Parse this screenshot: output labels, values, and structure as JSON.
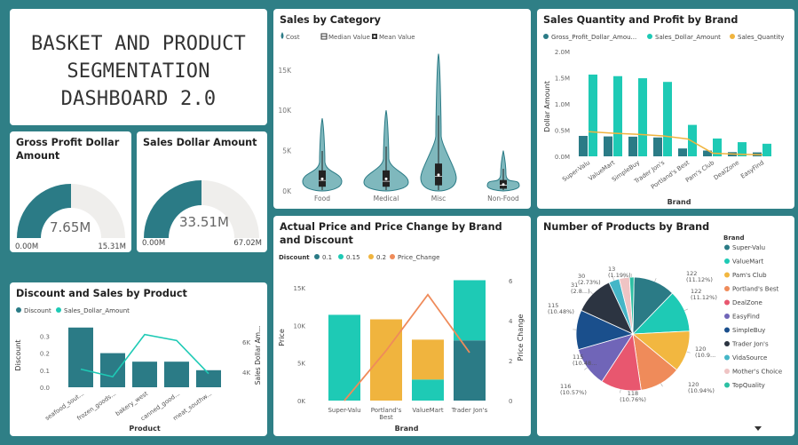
{
  "dashboard": {
    "title_lines": [
      "BASKET AND PRODUCT",
      "SEGMENTATION",
      "DASHBOARD 2.0"
    ]
  },
  "colors": {
    "teal_dark": "#2b7b86",
    "teal_light": "#1ecab5",
    "orange": "#f0b43e",
    "salmon": "#ef8b5a",
    "gray_track": "#efeeec",
    "background": "#2f7f86"
  },
  "kpis": [
    {
      "title": "Gross Profit Dollar Amount",
      "value": "7.65M",
      "min": "0.00M",
      "max": "15.31M",
      "fraction": 0.5
    },
    {
      "title": "Sales Dollar Amount",
      "value": "33.51M",
      "min": "0.00M",
      "max": "67.02M",
      "fraction": 0.5
    }
  ],
  "charts": {
    "violin": {
      "title": "Sales by Category",
      "legend": [
        "Cost",
        "Median Value",
        "Mean Value"
      ],
      "legend_icons": [
        "drop-icon",
        "median-box-icon",
        "mean-box-icon"
      ],
      "yticks": [
        "0K",
        "5K",
        "10K",
        "15K"
      ]
    },
    "quantity": {
      "title": "Sales Quantity and Profit by Brand",
      "legend": [
        "Gross_Profit_Dollar_Amou...",
        "Sales_Dollar_Amount",
        "Sales_Quantity"
      ],
      "yticks": [
        "0.0M",
        "0.5M",
        "1.0M",
        "1.5M",
        "2.0M"
      ],
      "ylabel": "Dollar Amount",
      "xlabel": "Brand"
    },
    "discount": {
      "title": "Discount and Sales by Product",
      "legend": [
        "Discount",
        "Sales_Dollar_Amount"
      ],
      "yticks": [
        "0.0",
        "0.1",
        "0.2",
        "0.3"
      ],
      "y2ticks": [
        "4K",
        "6K"
      ],
      "ylabel": "Discount",
      "y2label": "Sales Dollar Am...",
      "xlabel": "Product"
    },
    "price": {
      "title": "Actual Price and Price Change by Brand and Discount",
      "legend_title": "Discount",
      "legend": [
        "0.1",
        "0.15",
        "0.2",
        "Price_Change"
      ],
      "yticks": [
        "0K",
        "5K",
        "10K",
        "15K"
      ],
      "y2ticks": [
        "0",
        "2",
        "4",
        "6"
      ],
      "ylabel": "Price",
      "y2label": "Price Change",
      "xlabel": "Brand"
    },
    "pie": {
      "title": "Number of Products by Brand",
      "legend_title": "Brand"
    }
  },
  "chart_data": [
    {
      "type": "violin",
      "title": "Sales by Category",
      "categories": [
        "Food",
        "Medical",
        "Misc",
        "Non-Food"
      ],
      "ylim": [
        0,
        18000
      ],
      "max": [
        9000,
        10000,
        17000,
        5000
      ],
      "median": [
        1300,
        1200,
        1800,
        700
      ],
      "mean": [
        1500,
        1500,
        2000,
        800
      ]
    },
    {
      "type": "bar",
      "title": "Sales Quantity and Profit by Brand",
      "categories": [
        "Super-Valu",
        "ValueMart",
        "SimpleBuy",
        "Trader Jon's",
        "Portland's Best",
        "Pam's Club",
        "DealZone",
        "EasyFind"
      ],
      "ylim": [
        0,
        2000000
      ],
      "series": [
        {
          "name": "Gross_Profit_Dollar_Amou...",
          "values": [
            390000,
            380000,
            375000,
            360000,
            150000,
            110000,
            80000,
            75000
          ]
        },
        {
          "name": "Sales_Dollar_Amount",
          "values": [
            1560000,
            1530000,
            1490000,
            1420000,
            600000,
            340000,
            270000,
            240000
          ]
        },
        {
          "name": "Sales_Quantity",
          "values": [
            470000,
            440000,
            420000,
            390000,
            330000,
            60000,
            40000,
            30000
          ]
        }
      ],
      "xlabel": "Brand",
      "ylabel": "Dollar Amount"
    },
    {
      "type": "bar",
      "title": "Discount and Sales by Product",
      "categories": [
        "seafood_sout...",
        "frozen_goods...",
        "bakery_west",
        "canned_good...",
        "meat_southw..."
      ],
      "ylim": [
        0,
        0.38
      ],
      "series": [
        {
          "name": "Discount",
          "values": [
            0.35,
            0.2,
            0.15,
            0.15,
            0.1
          ]
        },
        {
          "name": "Sales_Dollar_Amount",
          "values": [
            4200,
            3700,
            6500,
            6100,
            3900
          ]
        }
      ],
      "y2lim": [
        3000,
        7300
      ],
      "xlabel": "Product",
      "ylabel": "Discount"
    },
    {
      "type": "bar",
      "title": "Actual Price and Price Change by Brand and Discount",
      "categories": [
        "Super-Valu",
        "Portland's Best",
        "ValueMart",
        "Trader Jon's"
      ],
      "ylim": [
        0,
        17000
      ],
      "stacks": [
        [
          {
            "discount": "0.15",
            "value": 11400
          }
        ],
        [
          {
            "discount": "0.2",
            "value": 10800
          }
        ],
        [
          {
            "discount": "0.15",
            "value": 2800
          },
          {
            "discount": "0.2",
            "value": 5300
          }
        ],
        [
          {
            "discount": "0.1",
            "value": 8000
          },
          {
            "discount": "0.15",
            "value": 8000
          }
        ]
      ],
      "series": [
        {
          "name": "Price_Change",
          "values": [
            0,
            2.5,
            5.3,
            2.4
          ]
        }
      ],
      "y2lim": [
        0,
        6.4
      ],
      "xlabel": "Brand",
      "ylabel": "Price",
      "y2label": "Price Change"
    },
    {
      "type": "pie",
      "title": "Number of Products by Brand",
      "labels": [
        "Super-Valu",
        "ValueMart",
        "Pam's Club",
        "Portland's Best",
        "DealZone",
        "EasyFind",
        "SimpleBuy",
        "Trader Jon's",
        "VidaSource",
        "Mother's Choice",
        "TopQuality"
      ],
      "values": [
        122,
        122,
        120,
        120,
        118,
        116,
        115,
        115,
        31,
        30,
        13
      ],
      "slice_labels": [
        "122 (11.12%)",
        "122 (11.12%)",
        "120 (10.9...",
        "120 (10.94%)",
        "118 (10.76%)",
        "116 (10.57%)",
        "115 (10.48...",
        "115 (10.48%)",
        "31 (2.8...)",
        "30 (2.73%)",
        "13 (1.19%)"
      ],
      "colors": [
        "#2b7b86",
        "#1ecab5",
        "#f2b740",
        "#ef8b5a",
        "#e8576f",
        "#7065b8",
        "#1a4f8c",
        "#2c3441",
        "#45b6c7",
        "#efc4c4",
        "#2cc0a3"
      ]
    }
  ]
}
